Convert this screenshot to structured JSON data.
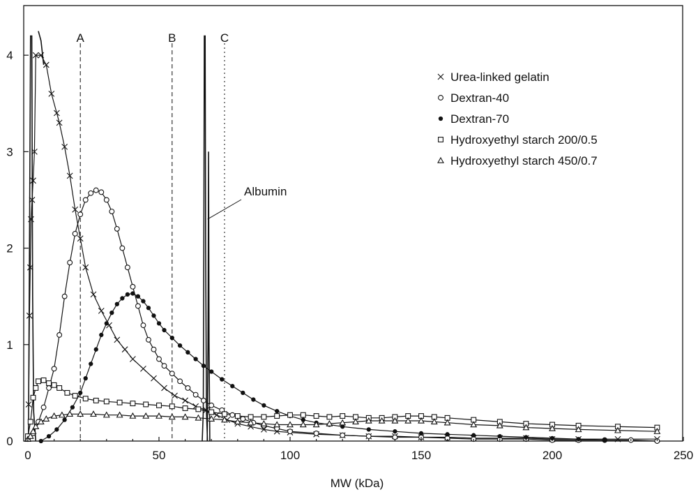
{
  "chart_data": {
    "type": "line",
    "title": "",
    "xlabel": "MW (kDa)",
    "ylabel": "",
    "xlim": [
      0,
      250
    ],
    "ylim": [
      0,
      4.5
    ],
    "x_ticks": [
      "0",
      "50",
      "100",
      "150",
      "200",
      "250"
    ],
    "y_ticks": [
      "0",
      "1",
      "2",
      "3",
      "4"
    ],
    "grid": false,
    "legend_position": "top-right",
    "series": [
      {
        "name": "Urea-linked gelatin",
        "marker": "x",
        "points": [
          [
            0.3,
            0.38
          ],
          [
            0.6,
            1.3
          ],
          [
            0.9,
            1.8
          ],
          [
            1.2,
            2.3
          ],
          [
            1.6,
            2.5
          ],
          [
            2,
            2.7
          ],
          [
            2.5,
            3.0
          ],
          [
            3,
            4.0
          ],
          [
            5,
            4.0
          ],
          [
            7,
            3.9
          ],
          [
            9,
            3.6
          ],
          [
            11,
            3.4
          ],
          [
            12,
            3.3
          ],
          [
            14,
            3.05
          ],
          [
            16,
            2.75
          ],
          [
            18,
            2.4
          ],
          [
            20,
            2.1
          ],
          [
            22,
            1.8
          ],
          [
            25,
            1.52
          ],
          [
            28,
            1.35
          ],
          [
            31,
            1.2
          ],
          [
            34,
            1.05
          ],
          [
            37,
            0.95
          ],
          [
            40,
            0.85
          ],
          [
            44,
            0.75
          ],
          [
            48,
            0.65
          ],
          [
            52,
            0.55
          ],
          [
            56,
            0.47
          ],
          [
            60,
            0.42
          ],
          [
            64,
            0.36
          ],
          [
            68,
            0.32
          ],
          [
            72,
            0.27
          ],
          [
            76,
            0.22
          ],
          [
            80,
            0.18
          ],
          [
            85,
            0.15
          ],
          [
            90,
            0.12
          ],
          [
            95,
            0.1
          ],
          [
            100,
            0.09
          ],
          [
            110,
            0.07
          ],
          [
            120,
            0.06
          ],
          [
            130,
            0.05
          ],
          [
            140,
            0.05
          ],
          [
            150,
            0.04
          ],
          [
            160,
            0.04
          ],
          [
            170,
            0.03
          ],
          [
            180,
            0.03
          ],
          [
            190,
            0.03
          ],
          [
            200,
            0.02
          ],
          [
            210,
            0.02
          ],
          [
            225,
            0.02
          ],
          [
            240,
            0.02
          ]
        ]
      },
      {
        "name": "Dextran-40",
        "marker": "circle",
        "points": [
          [
            0,
            0.02
          ],
          [
            2,
            0.08
          ],
          [
            4,
            0.2
          ],
          [
            6,
            0.35
          ],
          [
            8,
            0.55
          ],
          [
            10,
            0.75
          ],
          [
            12,
            1.1
          ],
          [
            14,
            1.5
          ],
          [
            16,
            1.85
          ],
          [
            18,
            2.15
          ],
          [
            20,
            2.35
          ],
          [
            22,
            2.5
          ],
          [
            24,
            2.57
          ],
          [
            26,
            2.6
          ],
          [
            28,
            2.58
          ],
          [
            30,
            2.5
          ],
          [
            32,
            2.38
          ],
          [
            34,
            2.2
          ],
          [
            36,
            2.0
          ],
          [
            38,
            1.8
          ],
          [
            40,
            1.6
          ],
          [
            42,
            1.4
          ],
          [
            44,
            1.2
          ],
          [
            46,
            1.05
          ],
          [
            48,
            0.95
          ],
          [
            50,
            0.85
          ],
          [
            52,
            0.78
          ],
          [
            55,
            0.7
          ],
          [
            58,
            0.62
          ],
          [
            61,
            0.55
          ],
          [
            64,
            0.48
          ],
          [
            67,
            0.42
          ],
          [
            70,
            0.37
          ],
          [
            74,
            0.32
          ],
          [
            78,
            0.27
          ],
          [
            82,
            0.23
          ],
          [
            86,
            0.19
          ],
          [
            90,
            0.16
          ],
          [
            95,
            0.13
          ],
          [
            100,
            0.1
          ],
          [
            110,
            0.08
          ],
          [
            120,
            0.06
          ],
          [
            130,
            0.05
          ],
          [
            140,
            0.04
          ],
          [
            150,
            0.04
          ],
          [
            160,
            0.03
          ],
          [
            170,
            0.02
          ],
          [
            180,
            0.02
          ],
          [
            190,
            0.02
          ],
          [
            200,
            0.01
          ],
          [
            210,
            0.01
          ],
          [
            220,
            0.01
          ],
          [
            230,
            0.01
          ],
          [
            240,
            0.0
          ]
        ]
      },
      {
        "name": "Dextran-70",
        "marker": "dot",
        "points": [
          [
            5,
            0.0
          ],
          [
            8,
            0.05
          ],
          [
            11,
            0.12
          ],
          [
            14,
            0.22
          ],
          [
            17,
            0.35
          ],
          [
            20,
            0.5
          ],
          [
            22,
            0.65
          ],
          [
            24,
            0.8
          ],
          [
            26,
            0.95
          ],
          [
            28,
            1.1
          ],
          [
            30,
            1.22
          ],
          [
            32,
            1.33
          ],
          [
            34,
            1.42
          ],
          [
            36,
            1.48
          ],
          [
            38,
            1.52
          ],
          [
            40,
            1.53
          ],
          [
            42,
            1.5
          ],
          [
            44,
            1.45
          ],
          [
            46,
            1.38
          ],
          [
            48,
            1.3
          ],
          [
            50,
            1.22
          ],
          [
            52,
            1.15
          ],
          [
            55,
            1.07
          ],
          [
            58,
            0.99
          ],
          [
            61,
            0.92
          ],
          [
            64,
            0.85
          ],
          [
            67,
            0.78
          ],
          [
            70,
            0.72
          ],
          [
            74,
            0.64
          ],
          [
            78,
            0.57
          ],
          [
            82,
            0.5
          ],
          [
            86,
            0.43
          ],
          [
            90,
            0.37
          ],
          [
            95,
            0.31
          ],
          [
            100,
            0.26
          ],
          [
            105,
            0.22
          ],
          [
            110,
            0.19
          ],
          [
            115,
            0.17
          ],
          [
            120,
            0.15
          ],
          [
            130,
            0.12
          ],
          [
            140,
            0.1
          ],
          [
            150,
            0.08
          ],
          [
            160,
            0.07
          ],
          [
            170,
            0.06
          ],
          [
            180,
            0.05
          ],
          [
            190,
            0.04
          ],
          [
            200,
            0.03
          ],
          [
            210,
            0.02
          ],
          [
            220,
            0.01
          ]
        ]
      },
      {
        "name": "Hydroxyethyl starch 200/0.5",
        "marker": "square",
        "points": [
          [
            0,
            0.05
          ],
          [
            1,
            0.2
          ],
          [
            2,
            0.45
          ],
          [
            3,
            0.55
          ],
          [
            4,
            0.62
          ],
          [
            6,
            0.63
          ],
          [
            8,
            0.6
          ],
          [
            10,
            0.58
          ],
          [
            12,
            0.55
          ],
          [
            15,
            0.5
          ],
          [
            18,
            0.47
          ],
          [
            22,
            0.44
          ],
          [
            26,
            0.42
          ],
          [
            30,
            0.41
          ],
          [
            35,
            0.4
          ],
          [
            40,
            0.39
          ],
          [
            45,
            0.38
          ],
          [
            50,
            0.37
          ],
          [
            55,
            0.36
          ],
          [
            60,
            0.34
          ],
          [
            65,
            0.33
          ],
          [
            70,
            0.3
          ],
          [
            75,
            0.28
          ],
          [
            80,
            0.26
          ],
          [
            85,
            0.25
          ],
          [
            90,
            0.25
          ],
          [
            95,
            0.26
          ],
          [
            100,
            0.27
          ],
          [
            105,
            0.27
          ],
          [
            110,
            0.26
          ],
          [
            115,
            0.25
          ],
          [
            120,
            0.26
          ],
          [
            125,
            0.25
          ],
          [
            130,
            0.24
          ],
          [
            135,
            0.24
          ],
          [
            140,
            0.25
          ],
          [
            145,
            0.26
          ],
          [
            150,
            0.26
          ],
          [
            155,
            0.25
          ],
          [
            160,
            0.24
          ],
          [
            170,
            0.22
          ],
          [
            180,
            0.2
          ],
          [
            190,
            0.18
          ],
          [
            200,
            0.17
          ],
          [
            210,
            0.16
          ],
          [
            225,
            0.15
          ],
          [
            240,
            0.14
          ]
        ]
      },
      {
        "name": "Hydroxyethyl starch 450/0.7",
        "marker": "triangle",
        "points": [
          [
            0,
            0.02
          ],
          [
            1,
            0.05
          ],
          [
            2,
            0.1
          ],
          [
            3,
            0.15
          ],
          [
            5,
            0.2
          ],
          [
            7,
            0.23
          ],
          [
            10,
            0.26
          ],
          [
            13,
            0.27
          ],
          [
            16,
            0.28
          ],
          [
            20,
            0.28
          ],
          [
            25,
            0.28
          ],
          [
            30,
            0.27
          ],
          [
            35,
            0.27
          ],
          [
            40,
            0.26
          ],
          [
            45,
            0.26
          ],
          [
            50,
            0.26
          ],
          [
            55,
            0.25
          ],
          [
            60,
            0.25
          ],
          [
            65,
            0.24
          ],
          [
            70,
            0.23
          ],
          [
            75,
            0.22
          ],
          [
            80,
            0.2
          ],
          [
            85,
            0.19
          ],
          [
            90,
            0.18
          ],
          [
            95,
            0.17
          ],
          [
            100,
            0.17
          ],
          [
            105,
            0.17
          ],
          [
            110,
            0.17
          ],
          [
            115,
            0.18
          ],
          [
            120,
            0.19
          ],
          [
            125,
            0.2
          ],
          [
            130,
            0.21
          ],
          [
            135,
            0.21
          ],
          [
            140,
            0.21
          ],
          [
            145,
            0.21
          ],
          [
            150,
            0.21
          ],
          [
            155,
            0.2
          ],
          [
            160,
            0.19
          ],
          [
            170,
            0.17
          ],
          [
            180,
            0.16
          ],
          [
            190,
            0.14
          ],
          [
            200,
            0.13
          ],
          [
            210,
            0.12
          ],
          [
            225,
            0.11
          ],
          [
            240,
            0.1
          ]
        ]
      }
    ],
    "extra_curves": [
      {
        "label": "",
        "points": [
          [
            0.2,
            0.0
          ],
          [
            0.5,
            1.5
          ],
          [
            1.0,
            4.2
          ],
          [
            1.5,
            4.2
          ],
          [
            1.8,
            1.5
          ],
          [
            2.2,
            0.3
          ],
          [
            3,
            0.0
          ]
        ]
      },
      {
        "label": "",
        "points": [
          [
            4,
            4.25
          ],
          [
            5,
            4.15
          ],
          [
            6,
            3.9
          ]
        ]
      },
      {
        "label": "Albumin",
        "points": [
          [
            66.5,
            0.0
          ],
          [
            66.9,
            0.3
          ],
          [
            67.1,
            2.0
          ],
          [
            67.3,
            4.2
          ],
          [
            67.6,
            4.2
          ],
          [
            67.8,
            2.0
          ],
          [
            68.1,
            0.3
          ],
          [
            68.5,
            0.0
          ]
        ]
      },
      {
        "label": "",
        "points": [
          [
            68.4,
            0.0
          ],
          [
            68.7,
            1.0
          ],
          [
            68.9,
            3.0
          ],
          [
            69.1,
            1.0
          ],
          [
            69.4,
            0.0
          ]
        ]
      }
    ],
    "reference_lines": [
      {
        "label": "A",
        "x": 20,
        "style": "dashed"
      },
      {
        "label": "B",
        "x": 55,
        "style": "dashed"
      },
      {
        "label": "C",
        "x": 75,
        "style": "dotted"
      }
    ],
    "annotations": [
      {
        "text": "Albumin",
        "target_x": 68,
        "target_y": 2.3
      }
    ]
  }
}
